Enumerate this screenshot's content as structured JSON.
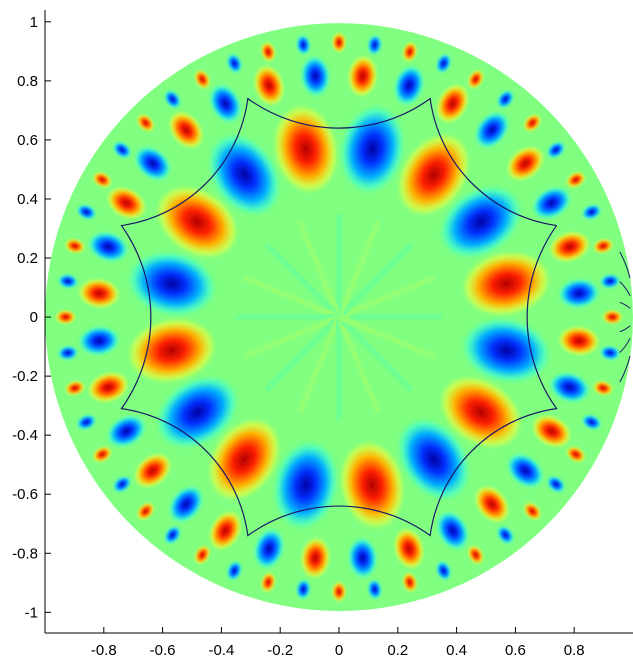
{
  "chart_data": {
    "type": "heatmap",
    "title": "",
    "xlabel": "",
    "ylabel": "",
    "xlim": [
      -1,
      1
    ],
    "ylim": [
      -1.07,
      1.04
    ],
    "x_ticks": [
      -0.8,
      -0.6,
      -0.4,
      -0.2,
      0,
      0.2,
      0.4,
      0.6,
      0.8
    ],
    "x_tick_labels": [
      "-0.8",
      "-0.6",
      "-0.4",
      "-0.2",
      "0",
      "0.2",
      "0.4",
      "0.6",
      "0.8"
    ],
    "y_ticks": [
      1,
      0.8,
      0.6,
      0.4,
      0.2,
      0,
      -0.2,
      -0.4,
      -0.6,
      -0.8,
      -1
    ],
    "y_tick_labels": [
      "1",
      "0.8",
      "0.6",
      "0.4",
      "0.2",
      "0",
      "-0.2",
      "-0.4",
      "-0.6",
      "-0.8",
      "-1"
    ],
    "colormap": [
      "#00008f",
      "#0000ff",
      "#00ffff",
      "#7fff7f",
      "#ffff00",
      "#ff0000",
      "#7f0000"
    ],
    "background_color": "#80ff80",
    "domain": "unit disk (Poincare disk model)",
    "symmetry_order": 8,
    "first_ring_lobes": {
      "count": 16,
      "radius": 0.58
    },
    "second_ring_lobes": {
      "count": 32,
      "radius": 0.82
    },
    "boundary_curve": {
      "shape": "regular hyperbolic octagon",
      "vertex_radius": 0.8,
      "vertex_angles_deg": [
        22.5,
        67.5,
        112.5,
        157.5,
        202.5,
        247.5,
        292.5,
        337.5
      ],
      "vertices": [
        [
          0.74,
          0.31
        ],
        [
          0.31,
          0.74
        ],
        [
          -0.31,
          0.74
        ],
        [
          -0.74,
          0.31
        ],
        [
          -0.74,
          -0.31
        ],
        [
          -0.31,
          -0.74
        ],
        [
          0.31,
          -0.74
        ],
        [
          0.74,
          -0.31
        ]
      ],
      "side_midpoint_radius": 0.64,
      "color": "#1a1a66"
    },
    "grid": false,
    "legend": "none"
  }
}
